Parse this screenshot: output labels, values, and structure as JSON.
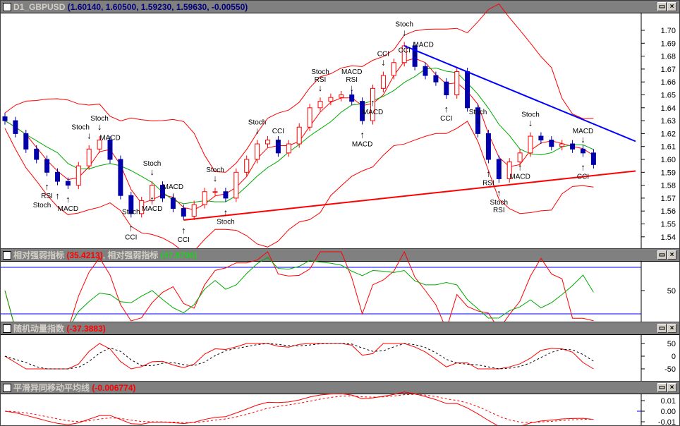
{
  "main": {
    "symbol": "D1_GBPUSD",
    "values": "(1.60140, 1.60500, 1.59230, 1.59630, -0.00550)",
    "y_ticks": [
      "1.70",
      "1.69",
      "1.68",
      "1.67",
      "1.66",
      "1.65",
      "1.64",
      "1.63",
      "1.62",
      "1.61",
      "1.60",
      "1.59",
      "1.58",
      "1.57",
      "1.56",
      "1.55",
      "1.54"
    ],
    "closes": [
      1.63,
      1.62,
      1.608,
      1.6,
      1.59,
      1.583,
      1.58,
      1.595,
      1.608,
      1.615,
      1.6,
      1.572,
      1.558,
      1.568,
      1.58,
      1.57,
      1.562,
      1.556,
      1.565,
      1.575,
      1.575,
      1.57,
      1.59,
      1.6,
      1.612,
      1.615,
      1.605,
      1.612,
      1.625,
      1.64,
      1.645,
      1.648,
      1.65,
      1.645,
      1.63,
      1.655,
      1.665,
      1.675,
      1.688,
      1.672,
      1.665,
      1.66,
      1.65,
      1.668,
      1.64,
      1.62,
      1.6,
      1.585,
      1.598,
      1.605,
      1.618,
      1.615,
      1.61,
      1.612,
      1.608,
      1.605,
      1.596
    ],
    "signals": [
      [
        "Stoch",
        38,
        "down"
      ],
      [
        "CCI",
        38,
        "down"
      ],
      [
        "MACD",
        39,
        "down"
      ],
      [
        "RSI",
        30,
        "down"
      ],
      [
        "Stoch",
        30,
        "down"
      ],
      [
        "RSI",
        33,
        "down"
      ],
      [
        "MACD",
        33,
        "down"
      ],
      [
        "MACD",
        35,
        "up"
      ],
      [
        "CCI",
        36,
        "down"
      ],
      [
        "Stoch",
        8,
        "down"
      ],
      [
        "Stoch",
        9,
        "down"
      ],
      [
        "MACD",
        10,
        "down"
      ],
      [
        "MACD",
        6,
        "up"
      ],
      [
        "RSI",
        4,
        "up"
      ],
      [
        "Stoch",
        5,
        "up"
      ],
      [
        "Stoch",
        14,
        "down"
      ],
      [
        "MACD",
        16,
        "down"
      ],
      [
        "CCI",
        12,
        "up"
      ],
      [
        "Stoch",
        12,
        "up"
      ],
      [
        "MACD",
        14,
        "up"
      ],
      [
        "CCI",
        17,
        "up"
      ],
      [
        "Stoch",
        20,
        "down"
      ],
      [
        "Stoch",
        21,
        "up"
      ],
      [
        "Stoch",
        24,
        "down"
      ],
      [
        "CCI",
        26,
        "down"
      ],
      [
        "CCI",
        42,
        "up"
      ],
      [
        "MACD",
        34,
        "up"
      ],
      [
        "Stoch",
        45,
        "down"
      ],
      [
        "RSI",
        46,
        "up"
      ],
      [
        "Stoch",
        47,
        "up"
      ],
      [
        "RSI",
        47,
        "up"
      ],
      [
        "MACD",
        49,
        "up"
      ],
      [
        "Stoch",
        50,
        "down"
      ],
      [
        "MACD",
        55,
        "down"
      ],
      [
        "CCI",
        55,
        "up"
      ]
    ],
    "trendlines": [
      {
        "color": "#0000ff",
        "from": [
          38,
          1.688
        ],
        "to": [
          60,
          1.614
        ]
      },
      {
        "color": "#ff0000",
        "from": [
          17,
          1.553
        ],
        "to": [
          60,
          1.591
        ]
      }
    ]
  },
  "rsi": {
    "title": "相对强弱指标",
    "value1": "(35.4213)",
    "sep": ",",
    "title2": "相对强弱指标",
    "value2": "(47.8796)",
    "tick": "50"
  },
  "stoch": {
    "title": "随机动量指数",
    "value": "(-37.3883)",
    "ticks": [
      "50",
      "0",
      "-50"
    ]
  },
  "macd": {
    "title": "平滑异同移动平均线",
    "value": "(-0.006774)",
    "ticks": [
      "0.01",
      "0.00",
      "-0.01"
    ]
  },
  "colors": {
    "up": "#ff0000",
    "down": "#0000aa",
    "ma_fast": "#ff0000",
    "ma_slow": "#00aa00",
    "bands": "#ff0000",
    "title_value": "#000080"
  },
  "buttons": {
    "restore": "▭",
    "close": "×"
  }
}
